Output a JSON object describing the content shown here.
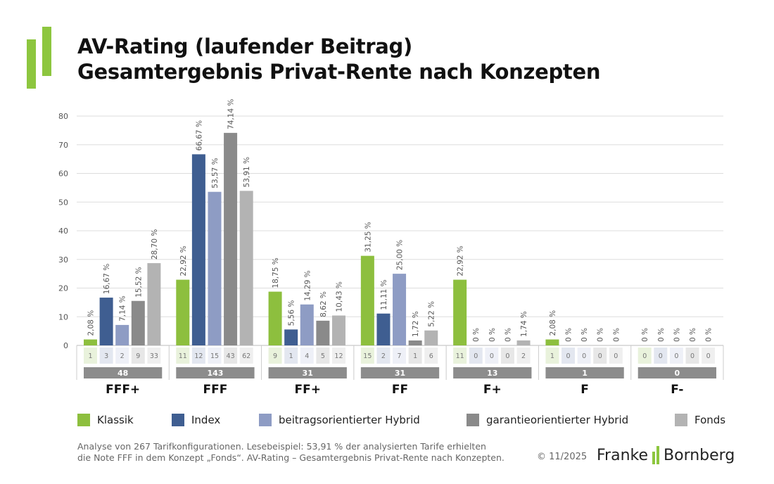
{
  "title_line1": "AV-Rating (laufender Beitrag)",
  "title_line2": "Gesamtergebnis Privat-Rente nach Konzepten",
  "footnote_line1": "Analyse von 267 Tarifkonfigurationen. Lesebeispiel: 53,91 % der analysierten Tarife erhielten",
  "footnote_line2": "die Note FFF in dem Konzept „Fonds“. AV-Rating – Gesamtergebnis Privat-Rente nach Konzepten.",
  "copyright": "© 11/2025",
  "brand": {
    "left": "Franke",
    "right": "Bornberg",
    "accent": "#8dc63f"
  },
  "chart_data": {
    "type": "bar",
    "title": "",
    "xlabel": "",
    "ylabel": "",
    "ylim": [
      0,
      80
    ],
    "yticks": [
      0,
      10,
      20,
      30,
      40,
      50,
      60,
      70,
      80
    ],
    "grid": true,
    "legend_position": "bottom",
    "categories": [
      "FFF+",
      "FFF",
      "FF+",
      "FF",
      "F+",
      "F",
      "F-"
    ],
    "category_totals": [
      48,
      143,
      31,
      31,
      13,
      1,
      0
    ],
    "series": [
      {
        "name": "Klassik",
        "color": "#8dbf3e",
        "light": "#e9f2dc",
        "values": [
          2.08,
          22.92,
          18.75,
          31.25,
          22.92,
          2.08,
          0
        ],
        "labels": [
          "2,08 %",
          "22,92 %",
          "18,75 %",
          "31,25 %",
          "22,92 %",
          "2,08 %",
          "0 %"
        ],
        "counts": [
          1,
          11,
          9,
          15,
          11,
          1,
          0
        ]
      },
      {
        "name": "Index",
        "color": "#3f5e91",
        "light": "#e3e7f0",
        "values": [
          16.67,
          66.67,
          5.56,
          11.11,
          0,
          0,
          0
        ],
        "labels": [
          "16,67 %",
          "66,67 %",
          "5,56 %",
          "11,11 %",
          "0 %",
          "0 %",
          "0 %"
        ],
        "counts": [
          3,
          12,
          1,
          2,
          0,
          0,
          0
        ]
      },
      {
        "name": "beitragsorientierter Hybrid",
        "color": "#8e9cc4",
        "light": "#eef0f7",
        "values": [
          7.14,
          53.57,
          14.29,
          25.0,
          0,
          0,
          0
        ],
        "labels": [
          "7,14 %",
          "53,57 %",
          "14,29 %",
          "25,00 %",
          "0 %",
          "0 %",
          "0 %"
        ],
        "counts": [
          2,
          15,
          4,
          7,
          0,
          0,
          0
        ]
      },
      {
        "name": "garantieorientierter Hybrid",
        "color": "#8a8a8a",
        "light": "#e7e7e7",
        "values": [
          15.52,
          74.14,
          8.62,
          1.72,
          0,
          0,
          0
        ],
        "labels": [
          "15,52 %",
          "74,14 %",
          "8,62 %",
          "1,72 %",
          "0 %",
          "0 %",
          "0 %"
        ],
        "counts": [
          9,
          43,
          5,
          1,
          0,
          0,
          0
        ]
      },
      {
        "name": "Fonds",
        "color": "#b3b3b3",
        "light": "#efefef",
        "values": [
          28.7,
          53.91,
          10.43,
          5.22,
          1.74,
          0,
          0
        ],
        "labels": [
          "28,70 %",
          "53,91 %",
          "10,43 %",
          "5,22 %",
          "1,74 %",
          "0 %",
          "0 %"
        ],
        "counts": [
          33,
          62,
          12,
          6,
          2,
          0,
          0
        ]
      }
    ]
  }
}
